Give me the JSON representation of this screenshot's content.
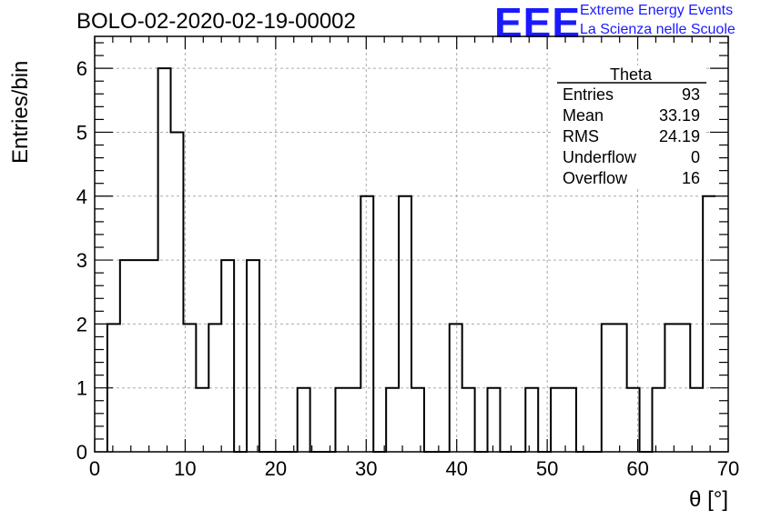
{
  "header": {
    "title": "BOLO-02-2020-02-19-00002",
    "logo_text": "EEE",
    "logo_line1": "Extreme Energy Events",
    "logo_line2": "La Scienza nelle Scuole",
    "logo_color": "#1a1aff"
  },
  "stats": {
    "name": "Theta",
    "rows": [
      {
        "label": "Entries",
        "value": "93"
      },
      {
        "label": "Mean",
        "value": "33.19"
      },
      {
        "label": "RMS",
        "value": "24.19"
      },
      {
        "label": "Underflow",
        "value": "0"
      },
      {
        "label": "Overflow",
        "value": "16"
      }
    ]
  },
  "chart_data": {
    "type": "histogram",
    "title": "BOLO-02-2020-02-19-00002",
    "xlabel": "θ [°]",
    "ylabel": "Entries/bin",
    "xlim": [
      0,
      70
    ],
    "ylim": [
      0,
      6.5
    ],
    "bin_width": 1.4,
    "bin_edges_start": 1.4,
    "values": [
      2,
      3,
      3,
      3,
      6,
      5,
      2,
      1,
      2,
      3,
      0,
      3,
      0,
      0,
      0,
      1,
      0,
      0,
      1,
      1,
      4,
      0,
      1,
      4,
      1,
      0,
      0,
      2,
      1,
      0,
      1,
      0,
      0,
      1,
      0,
      1,
      1,
      0,
      0,
      2,
      2,
      1,
      0,
      1,
      2,
      2,
      1,
      4
    ],
    "xticks": [
      0,
      10,
      20,
      30,
      40,
      50,
      60,
      70
    ],
    "yticks": [
      0,
      1,
      2,
      3,
      4,
      5,
      6
    ],
    "grid": true,
    "line_color": "#000000"
  }
}
